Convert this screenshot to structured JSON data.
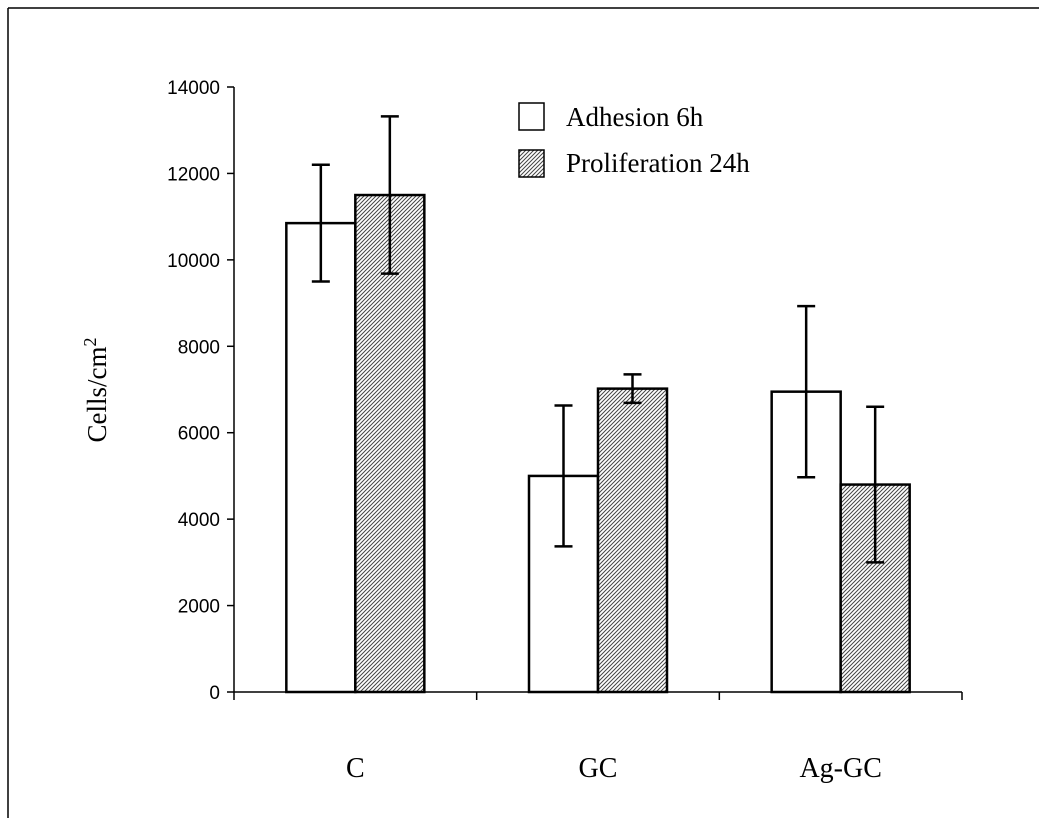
{
  "chart_data": {
    "type": "bar",
    "ylabel": "Cells/cm",
    "ylabel_sup": "2",
    "ylim": [
      0,
      14000
    ],
    "yticks": [
      0,
      2000,
      4000,
      6000,
      8000,
      10000,
      12000,
      14000
    ],
    "categories": [
      "C",
      "GC",
      "Ag-GC"
    ],
    "series": [
      {
        "name": "Adhesion 6h",
        "fill": "plain",
        "values": [
          10850,
          5000,
          6950
        ],
        "errors": [
          1350,
          1630,
          1980
        ]
      },
      {
        "name": "Proliferation 24h",
        "fill": "hatched",
        "values": [
          11500,
          7020,
          4800
        ],
        "errors": [
          1820,
          330,
          1800
        ]
      }
    ],
    "legend": "top-right",
    "grid": false
  }
}
